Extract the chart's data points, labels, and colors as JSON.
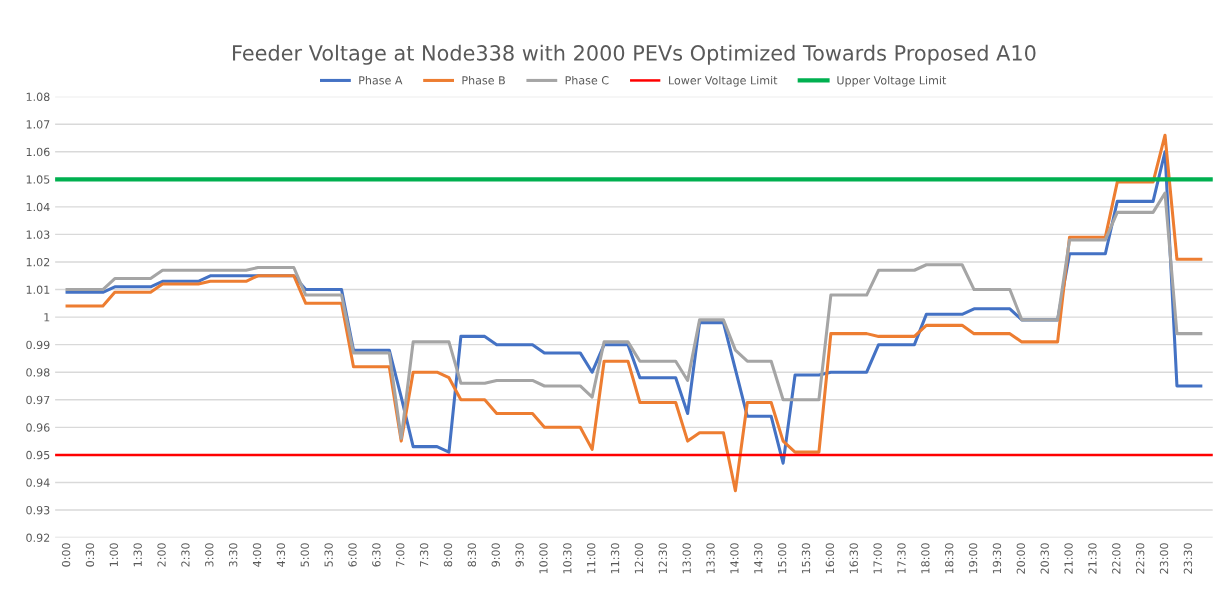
{
  "chart_data": {
    "type": "line",
    "title": "Feeder Voltage at Node338 with 2000 PEVs Optimized Towards Proposed A10",
    "categories": [
      "0:00",
      null,
      "0:30",
      null,
      "1:00",
      null,
      "1:30",
      null,
      "2:00",
      null,
      "2:30",
      null,
      "3:00",
      null,
      "3:30",
      null,
      "4:00",
      null,
      "4:30",
      null,
      "5:00",
      null,
      "5:30",
      null,
      "6:00",
      null,
      "6:30",
      null,
      "7:00",
      null,
      "7:30",
      null,
      "8:00",
      null,
      "8:30",
      null,
      "9:00",
      null,
      "9:30",
      null,
      "10:00",
      null,
      "10:30",
      null,
      "11:00",
      null,
      "11:30",
      null,
      "12:00",
      null,
      "12:30",
      null,
      "13:00",
      null,
      "13:30",
      null,
      "14:00",
      null,
      "14:30",
      null,
      "15:00",
      null,
      "15:30",
      null,
      "16:00",
      null,
      "16:30",
      null,
      "17:00",
      null,
      "17:30",
      null,
      "18:00",
      null,
      "18:30",
      null,
      "19:00",
      null,
      "19:30",
      null,
      "20:00",
      null,
      "20:30",
      null,
      "21:00",
      null,
      "21:30",
      null,
      "22:00",
      null,
      "22:30",
      null,
      "23:00",
      null,
      "23:30",
      null
    ],
    "series": [
      {
        "name": "Phase A",
        "color": "#4472c4",
        "values": [
          1.009,
          1.009,
          1.009,
          1.009,
          1.011,
          1.011,
          1.011,
          1.011,
          1.013,
          1.013,
          1.013,
          1.013,
          1.015,
          1.015,
          1.015,
          1.015,
          1.015,
          1.015,
          1.015,
          1.015,
          1.01,
          1.01,
          1.01,
          1.01,
          0.988,
          0.988,
          0.988,
          0.988,
          0.971,
          0.953,
          0.953,
          0.953,
          0.951,
          0.993,
          0.993,
          0.993,
          0.99,
          0.99,
          0.99,
          0.99,
          0.987,
          0.987,
          0.987,
          0.987,
          0.98,
          0.99,
          0.99,
          0.99,
          0.978,
          0.978,
          0.978,
          0.978,
          0.965,
          0.998,
          0.998,
          0.998,
          0.981,
          0.964,
          0.964,
          0.964,
          0.947,
          0.979,
          0.979,
          0.979,
          0.98,
          0.98,
          0.98,
          0.98,
          0.99,
          0.99,
          0.99,
          0.99,
          1.001,
          1.001,
          1.001,
          1.001,
          1.003,
          1.003,
          1.003,
          1.003,
          0.999,
          0.999,
          0.999,
          0.999,
          1.023,
          1.023,
          1.023,
          1.023,
          1.042,
          1.042,
          1.042,
          1.042,
          1.06,
          0.975,
          0.975,
          0.975
        ]
      },
      {
        "name": "Phase B",
        "color": "#ed7d31",
        "values": [
          1.004,
          1.004,
          1.004,
          1.004,
          1.009,
          1.009,
          1.009,
          1.009,
          1.012,
          1.012,
          1.012,
          1.012,
          1.013,
          1.013,
          1.013,
          1.013,
          1.015,
          1.015,
          1.015,
          1.015,
          1.005,
          1.005,
          1.005,
          1.005,
          0.982,
          0.982,
          0.982,
          0.982,
          0.955,
          0.98,
          0.98,
          0.98,
          0.978,
          0.97,
          0.97,
          0.97,
          0.965,
          0.965,
          0.965,
          0.965,
          0.96,
          0.96,
          0.96,
          0.96,
          0.952,
          0.984,
          0.984,
          0.984,
          0.969,
          0.969,
          0.969,
          0.969,
          0.955,
          0.958,
          0.958,
          0.958,
          0.937,
          0.969,
          0.969,
          0.969,
          0.955,
          0.951,
          0.951,
          0.951,
          0.994,
          0.994,
          0.994,
          0.994,
          0.993,
          0.993,
          0.993,
          0.993,
          0.997,
          0.997,
          0.997,
          0.997,
          0.994,
          0.994,
          0.994,
          0.994,
          0.991,
          0.991,
          0.991,
          0.991,
          1.029,
          1.029,
          1.029,
          1.029,
          1.049,
          1.049,
          1.049,
          1.049,
          1.066,
          1.021,
          1.021,
          1.021
        ]
      },
      {
        "name": "Phase C",
        "color": "#a5a5a5",
        "values": [
          1.01,
          1.01,
          1.01,
          1.01,
          1.014,
          1.014,
          1.014,
          1.014,
          1.017,
          1.017,
          1.017,
          1.017,
          1.017,
          1.017,
          1.017,
          1.017,
          1.018,
          1.018,
          1.018,
          1.018,
          1.008,
          1.008,
          1.008,
          1.008,
          0.987,
          0.987,
          0.987,
          0.987,
          0.956,
          0.991,
          0.991,
          0.991,
          0.991,
          0.976,
          0.976,
          0.976,
          0.977,
          0.977,
          0.977,
          0.977,
          0.975,
          0.975,
          0.975,
          0.975,
          0.971,
          0.991,
          0.991,
          0.991,
          0.984,
          0.984,
          0.984,
          0.984,
          0.977,
          0.999,
          0.999,
          0.999,
          0.988,
          0.984,
          0.984,
          0.984,
          0.97,
          0.97,
          0.97,
          0.97,
          1.008,
          1.008,
          1.008,
          1.008,
          1.017,
          1.017,
          1.017,
          1.017,
          1.019,
          1.019,
          1.019,
          1.019,
          1.01,
          1.01,
          1.01,
          1.01,
          0.999,
          0.999,
          0.999,
          0.999,
          1.028,
          1.028,
          1.028,
          1.028,
          1.038,
          1.038,
          1.038,
          1.038,
          1.045,
          0.994,
          0.994,
          0.994
        ]
      }
    ],
    "ref_lines": [
      {
        "axis": "y",
        "value": 0.95,
        "label": "Lower Voltage Limit",
        "color": "#ff0000"
      },
      {
        "axis": "y",
        "value": 1.05,
        "label": "Upper Voltage Limit",
        "color": "#00b050"
      }
    ],
    "ylim": [
      0.92,
      1.08
    ],
    "yticks": [
      0.92,
      0.93,
      0.94,
      0.95,
      0.96,
      0.97,
      0.98,
      0.99,
      1,
      1.01,
      1.02,
      1.03,
      1.04,
      1.05,
      1.06,
      1.07,
      1.08
    ],
    "grid": "y",
    "legend": "top",
    "marker": "none",
    "line_style": "solid"
  }
}
